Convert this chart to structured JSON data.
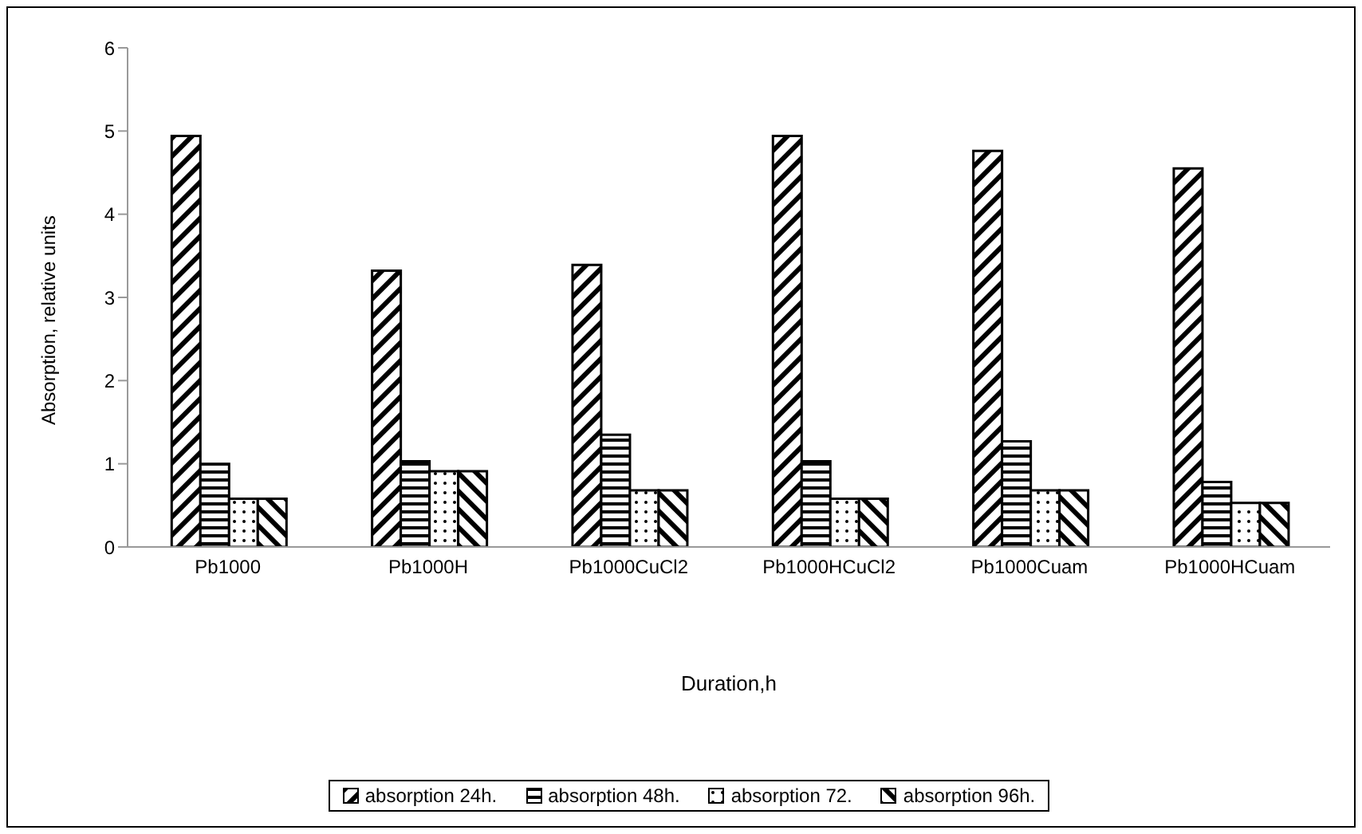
{
  "chart_data": {
    "type": "bar",
    "xlabel": "Duration,h",
    "ylabel": "Absorption, relative units",
    "categories": [
      "Pb1000",
      "Pb1000H",
      "Pb1000CuCl2",
      "Pb1000HCuCl2",
      "Pb1000Cuam",
      "Pb1000HCuam"
    ],
    "series": [
      {
        "name": "absorption 24h.",
        "color": "#000000",
        "values": [
          4.94,
          3.32,
          3.39,
          4.94,
          4.76,
          4.55
        ]
      },
      {
        "name": "absorption 48h.",
        "color": "#000000",
        "values": [
          1.0,
          1.03,
          1.35,
          1.03,
          1.27,
          0.78
        ]
      },
      {
        "name": "absorption 72.",
        "color": "#000000",
        "values": [
          0.58,
          0.91,
          0.68,
          0.58,
          0.68,
          0.53
        ]
      },
      {
        "name": "absorption 96h.",
        "color": "#000000",
        "values": [
          0.58,
          0.91,
          0.68,
          0.58,
          0.68,
          0.53
        ]
      }
    ],
    "ylim": [
      0,
      6
    ],
    "yticks": [
      0,
      1,
      2,
      3,
      4,
      5,
      6
    ],
    "grid": false,
    "legend": "bottom"
  }
}
